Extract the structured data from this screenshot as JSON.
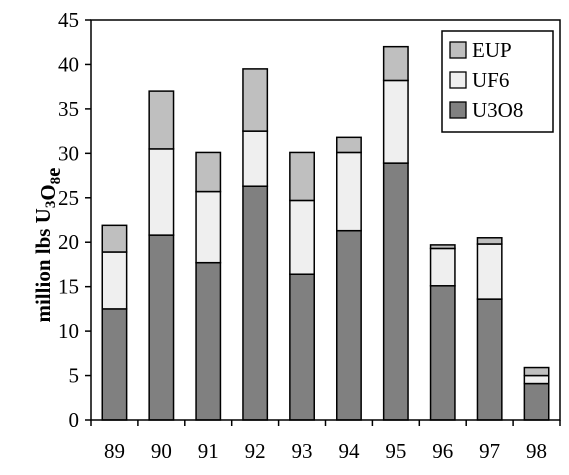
{
  "chart_data": {
    "type": "bar",
    "stacked": true,
    "categories": [
      "89",
      "90",
      "91",
      "92",
      "93",
      "94",
      "95",
      "96",
      "97",
      "98"
    ],
    "series": [
      {
        "name": "U3O8",
        "color": "#808080",
        "values": [
          12.5,
          20.8,
          17.7,
          26.3,
          16.4,
          21.3,
          28.9,
          15.1,
          13.6,
          4.1
        ]
      },
      {
        "name": "UF6",
        "color": "#efefef",
        "values": [
          6.4,
          9.7,
          8.0,
          6.2,
          8.3,
          8.8,
          9.3,
          4.2,
          6.2,
          0.9
        ]
      },
      {
        "name": "EUP",
        "color": "#bfbfbf",
        "values": [
          3.0,
          6.5,
          4.4,
          7.0,
          5.4,
          1.7,
          3.8,
          0.4,
          0.7,
          0.9
        ]
      }
    ],
    "ylabel": "million lbs U3O8e",
    "ylim": [
      0,
      45
    ],
    "yticks": [
      0,
      5,
      10,
      15,
      20,
      25,
      30,
      35,
      40,
      45
    ],
    "grid": false,
    "legend_position": "top-right"
  }
}
